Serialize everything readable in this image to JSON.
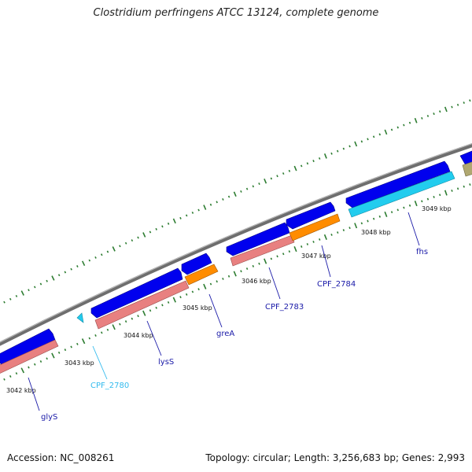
{
  "title": "Clostridium perfringens ATCC 13124, complete genome",
  "footer": {
    "accession": "Accession: NC_008261",
    "summary": "Topology: circular; Length: 3,256,683 bp; Genes: 2,993"
  },
  "tick_labels": [
    "3042 kbp",
    "3043 kbp",
    "3044 kbp",
    "3045 kbp",
    "3046 kbp",
    "3047 kbp",
    "3048 kbp",
    "3049 kbp"
  ],
  "gene_labels": [
    {
      "text": "glyS",
      "color": "#1a1aa8"
    },
    {
      "text": "CPF_2780",
      "color": "#33bbee"
    },
    {
      "text": "lysS",
      "color": "#1a1aa8"
    },
    {
      "text": "greA",
      "color": "#1a1aa8"
    },
    {
      "text": "CPF_2783",
      "color": "#1a1aa8"
    },
    {
      "text": "CPF_2784",
      "color": "#1a1aa8"
    },
    {
      "text": "fhs",
      "color": "#1a1aa8"
    }
  ],
  "colors": {
    "backbone": "#808080",
    "cds_forward": "#0000ee",
    "gene_pink": "#e88080",
    "gene_orange": "#ff8c00",
    "gene_cyan": "#22ccee",
    "gene_olive": "#b0a870",
    "tick_green": "#2e7d32"
  }
}
